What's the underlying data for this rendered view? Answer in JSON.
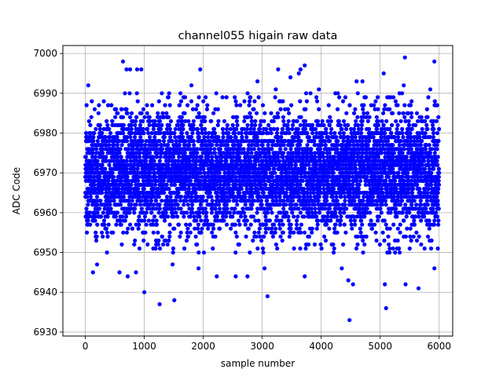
{
  "chart_data": {
    "type": "scatter",
    "title": "channel055 higain raw data",
    "xlabel": "sample number",
    "ylabel": "ADC Code",
    "xlim": [
      -380,
      6230
    ],
    "ylim": [
      6929,
      7002
    ],
    "x_ticks": [
      0,
      1000,
      2000,
      3000,
      4000,
      5000,
      6000
    ],
    "x_tick_labels": [
      "0",
      "1000",
      "2000",
      "3000",
      "4000",
      "5000",
      "6000"
    ],
    "y_ticks": [
      6930,
      6940,
      6950,
      6960,
      6970,
      6980,
      6990,
      7000
    ],
    "y_tick_labels": [
      "6930",
      "6940",
      "6950",
      "6960",
      "6970",
      "6980",
      "6990",
      "7000"
    ],
    "grid": true,
    "marker_color": "#0000ff",
    "n_samples": 6000,
    "bulk_range": [
      6950,
      6990
    ],
    "center": 6970,
    "series": [
      {
        "points": [
          [
            50,
            6992
          ],
          [
            640,
            6998
          ],
          [
            700,
            6996
          ],
          [
            760,
            6996
          ],
          [
            880,
            6996
          ],
          [
            950,
            6996
          ],
          [
            1950,
            6996
          ],
          [
            3270,
            6996
          ],
          [
            3620,
            6995
          ],
          [
            3650,
            6996
          ],
          [
            3720,
            6997
          ],
          [
            5060,
            6995
          ],
          [
            5420,
            6999
          ],
          [
            5920,
            6998
          ],
          [
            130,
            6945
          ],
          [
            200,
            6947
          ],
          [
            580,
            6945
          ],
          [
            720,
            6944
          ],
          [
            860,
            6945
          ],
          [
            1000,
            6940
          ],
          [
            1260,
            6937
          ],
          [
            1480,
            6947
          ],
          [
            1510,
            6938
          ],
          [
            1920,
            6946
          ],
          [
            2230,
            6944
          ],
          [
            2550,
            6944
          ],
          [
            2750,
            6944
          ],
          [
            3040,
            6946
          ],
          [
            3090,
            6939
          ],
          [
            3720,
            6944
          ],
          [
            4350,
            6946
          ],
          [
            4460,
            6943
          ],
          [
            4480,
            6933
          ],
          [
            4540,
            6942
          ],
          [
            5080,
            6942
          ],
          [
            5100,
            6936
          ],
          [
            5430,
            6942
          ],
          [
            5650,
            6941
          ],
          [
            5920,
            6946
          ],
          [
            1250,
            6988
          ],
          [
            1410,
            6989
          ],
          [
            1800,
            6992
          ],
          [
            2920,
            6993
          ],
          [
            3230,
            6991
          ],
          [
            3480,
            6994
          ],
          [
            3960,
            6991
          ],
          [
            4600,
            6993
          ],
          [
            4700,
            6993
          ],
          [
            5400,
            6992
          ],
          [
            5850,
            6991
          ]
        ]
      }
    ]
  }
}
